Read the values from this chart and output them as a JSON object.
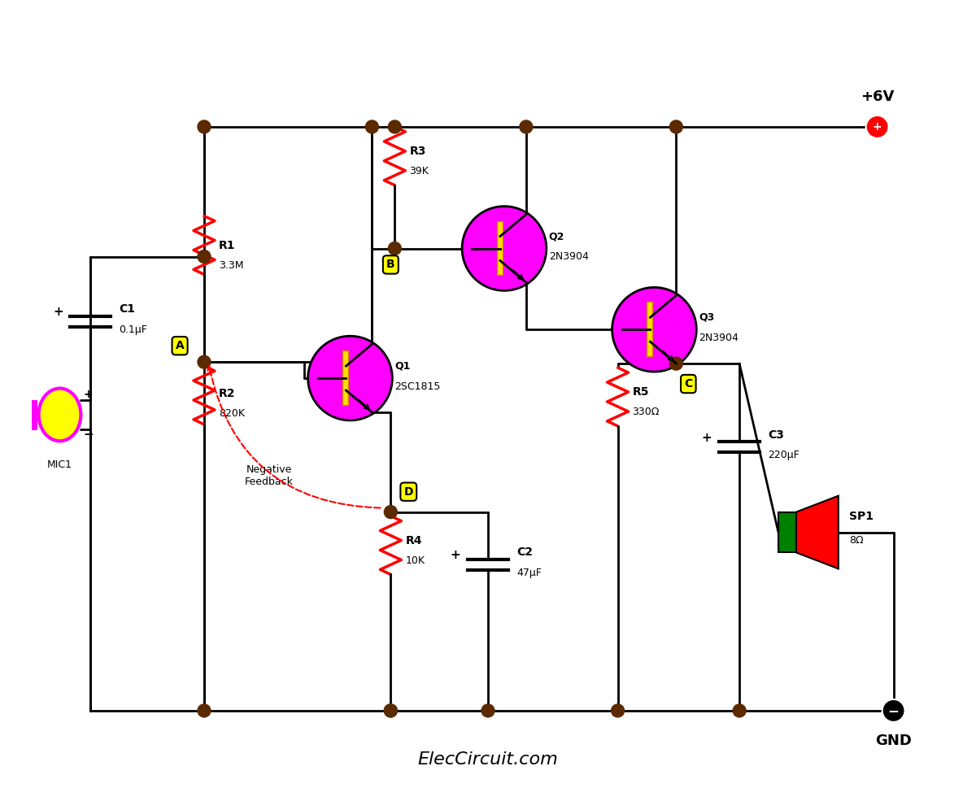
{
  "bg_color": "#ffffff",
  "line_color": "#000000",
  "wire_color": "#000000",
  "resistor_color": "#ff0000",
  "transistor_fill": "#ff00ff",
  "transistor_border": "#000000",
  "node_color": "#5c2a00",
  "label_bg": "#ffff00",
  "plus_terminal": "#ff0000",
  "minus_terminal": "#000000",
  "mic_fill": "#ffff00",
  "mic_border": "#ff00ff",
  "speaker_red": "#ff0000",
  "speaker_green": "#008000",
  "cap_color": "#ff8800",
  "title_text": "ElecCircuit.com",
  "vcc_label": "+6V",
  "gnd_label": "GND",
  "figsize": [
    12.0,
    9.85
  ],
  "dpi": 100
}
